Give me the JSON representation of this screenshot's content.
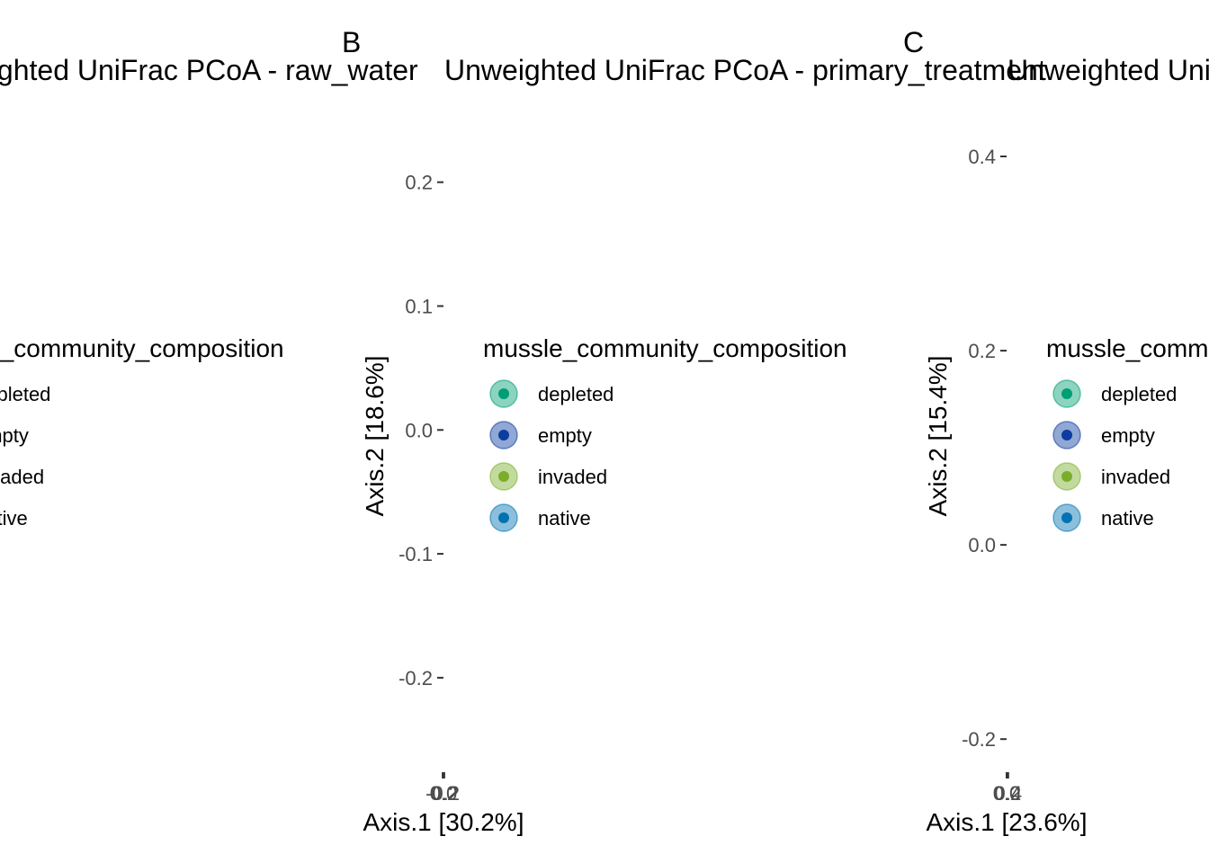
{
  "figure": {
    "panels": [
      {
        "label": "",
        "title": "Unweighted UniFrac PCoA - raw_water",
        "xlabel": "Axis.1   [30.2%]",
        "ylabel": "Axis.2   [18.6%]",
        "legend": {
          "title": "mussle_community_composition",
          "entries": [
            {
              "label": "depleted",
              "color": "#009E73"
            },
            {
              "label": "empty",
              "color": "#0C3C9F"
            },
            {
              "label": "invaded",
              "color": "#7AAE2A"
            },
            {
              "label": "native",
              "color": "#0072B2"
            }
          ]
        }
      },
      {
        "label": "B",
        "title": "Unweighted UniFrac PCoA - primary_treatment",
        "xlabel": "Axis.1   [30.2%]",
        "ylabel": "Axis.2   [18.6%]",
        "legend": {
          "title": "mussle_community_composition",
          "entries": [
            {
              "label": "depleted",
              "color": "#009E73"
            },
            {
              "label": "empty",
              "color": "#0C3C9F"
            },
            {
              "label": "invaded",
              "color": "#7AAE2A"
            },
            {
              "label": "native",
              "color": "#0072B2"
            }
          ]
        }
      },
      {
        "label": "C",
        "title": "Unweighted UniFrac PCoA",
        "xlabel": "Axis.1   [23.6%]",
        "ylabel": "Axis.2   [15.4%]",
        "legend": {
          "title": "mussle_community_composition",
          "entries": [
            {
              "label": "depleted",
              "color": "#009E73"
            },
            {
              "label": "empty",
              "color": "#0C3C9F"
            },
            {
              "label": "invaded",
              "color": "#7AAE2A"
            },
            {
              "label": "native",
              "color": "#0072B2"
            }
          ]
        }
      }
    ]
  },
  "chart_data": [
    {
      "type": "scatter",
      "title": "Unweighted UniFrac PCoA - raw_water",
      "xlabel": "Axis.1   [30.2%]",
      "ylabel": "Axis.2   [18.6%]",
      "series": [
        {
          "name": "depleted",
          "points": []
        },
        {
          "name": "empty",
          "points": []
        },
        {
          "name": "invaded",
          "points": []
        },
        {
          "name": "native",
          "points": []
        }
      ]
    },
    {
      "type": "scatter",
      "title": "Unweighted UniFrac PCoA - primary_treatment",
      "xlabel": "Axis.1   [30.2%]",
      "ylabel": "Axis.2   [18.6%]",
      "yticks": [
        -0.2,
        -0.1,
        0.0,
        0.1,
        0.2
      ],
      "ylim": [
        -0.277,
        0.26
      ],
      "xticks": [
        -0.2,
        0.0,
        0.2
      ],
      "xlim": [
        -70,
        70
      ],
      "series": [
        {
          "name": "depleted",
          "points": []
        },
        {
          "name": "empty",
          "points": []
        },
        {
          "name": "invaded",
          "points": []
        },
        {
          "name": "native",
          "points": []
        }
      ]
    },
    {
      "type": "scatter",
      "title": "Unweighted UniFrac PCoA",
      "xlabel": "Axis.1   [23.6%]",
      "ylabel": "Axis.2   [15.4%]",
      "yticks": [
        -0.2,
        0.0,
        0.2,
        0.4
      ],
      "ylim": [
        -0.235,
        0.45
      ],
      "xticks": [
        0.0,
        0.2,
        0.4
      ],
      "xlim": [
        -100,
        100
      ],
      "series": [
        {
          "name": "depleted",
          "points": []
        },
        {
          "name": "empty",
          "points": []
        },
        {
          "name": "invaded",
          "points": []
        },
        {
          "name": "native",
          "points": []
        }
      ]
    }
  ]
}
